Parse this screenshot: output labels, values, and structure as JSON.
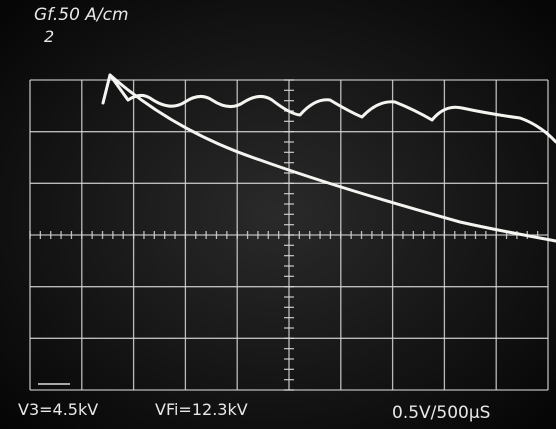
{
  "caption": {
    "title": "Gf.50 A/cm",
    "superscript": "2"
  },
  "footer": {
    "v3": "V3=4.5kV",
    "vfi": "VFi=12.3kV",
    "scale": "0.5V/500µS"
  }
}
